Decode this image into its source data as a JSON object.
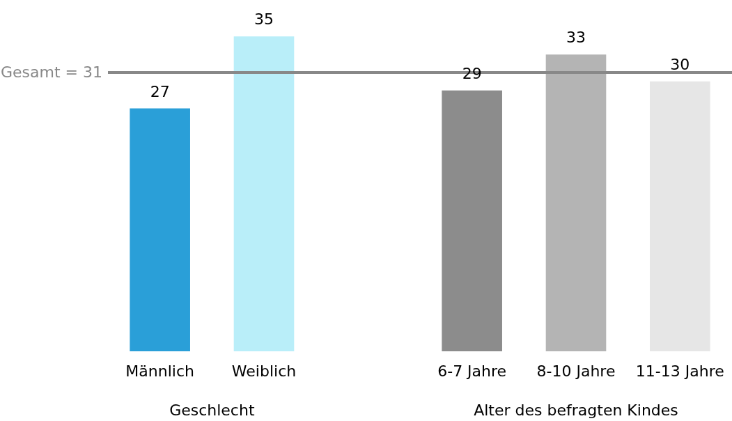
{
  "chart_data": {
    "type": "bar",
    "categories": [
      "Männlich",
      "Weiblich",
      null,
      "6-7 Jahre",
      "8-10 Jahre",
      "11-13 Jahre"
    ],
    "values": [
      27,
      35,
      null,
      29,
      33,
      30
    ],
    "colors": [
      "#2a9fd8",
      "#b9eef9",
      null,
      "#8c8c8c",
      "#b4b4b4",
      "#e6e6e6"
    ],
    "data_labels": true,
    "ref_lines": [
      {
        "axis": "y",
        "value": 31,
        "label": "Gesamt = 31",
        "color": "#888888"
      }
    ],
    "annotations": [
      "Geschlecht",
      "Alter des befragten Kindes"
    ]
  }
}
